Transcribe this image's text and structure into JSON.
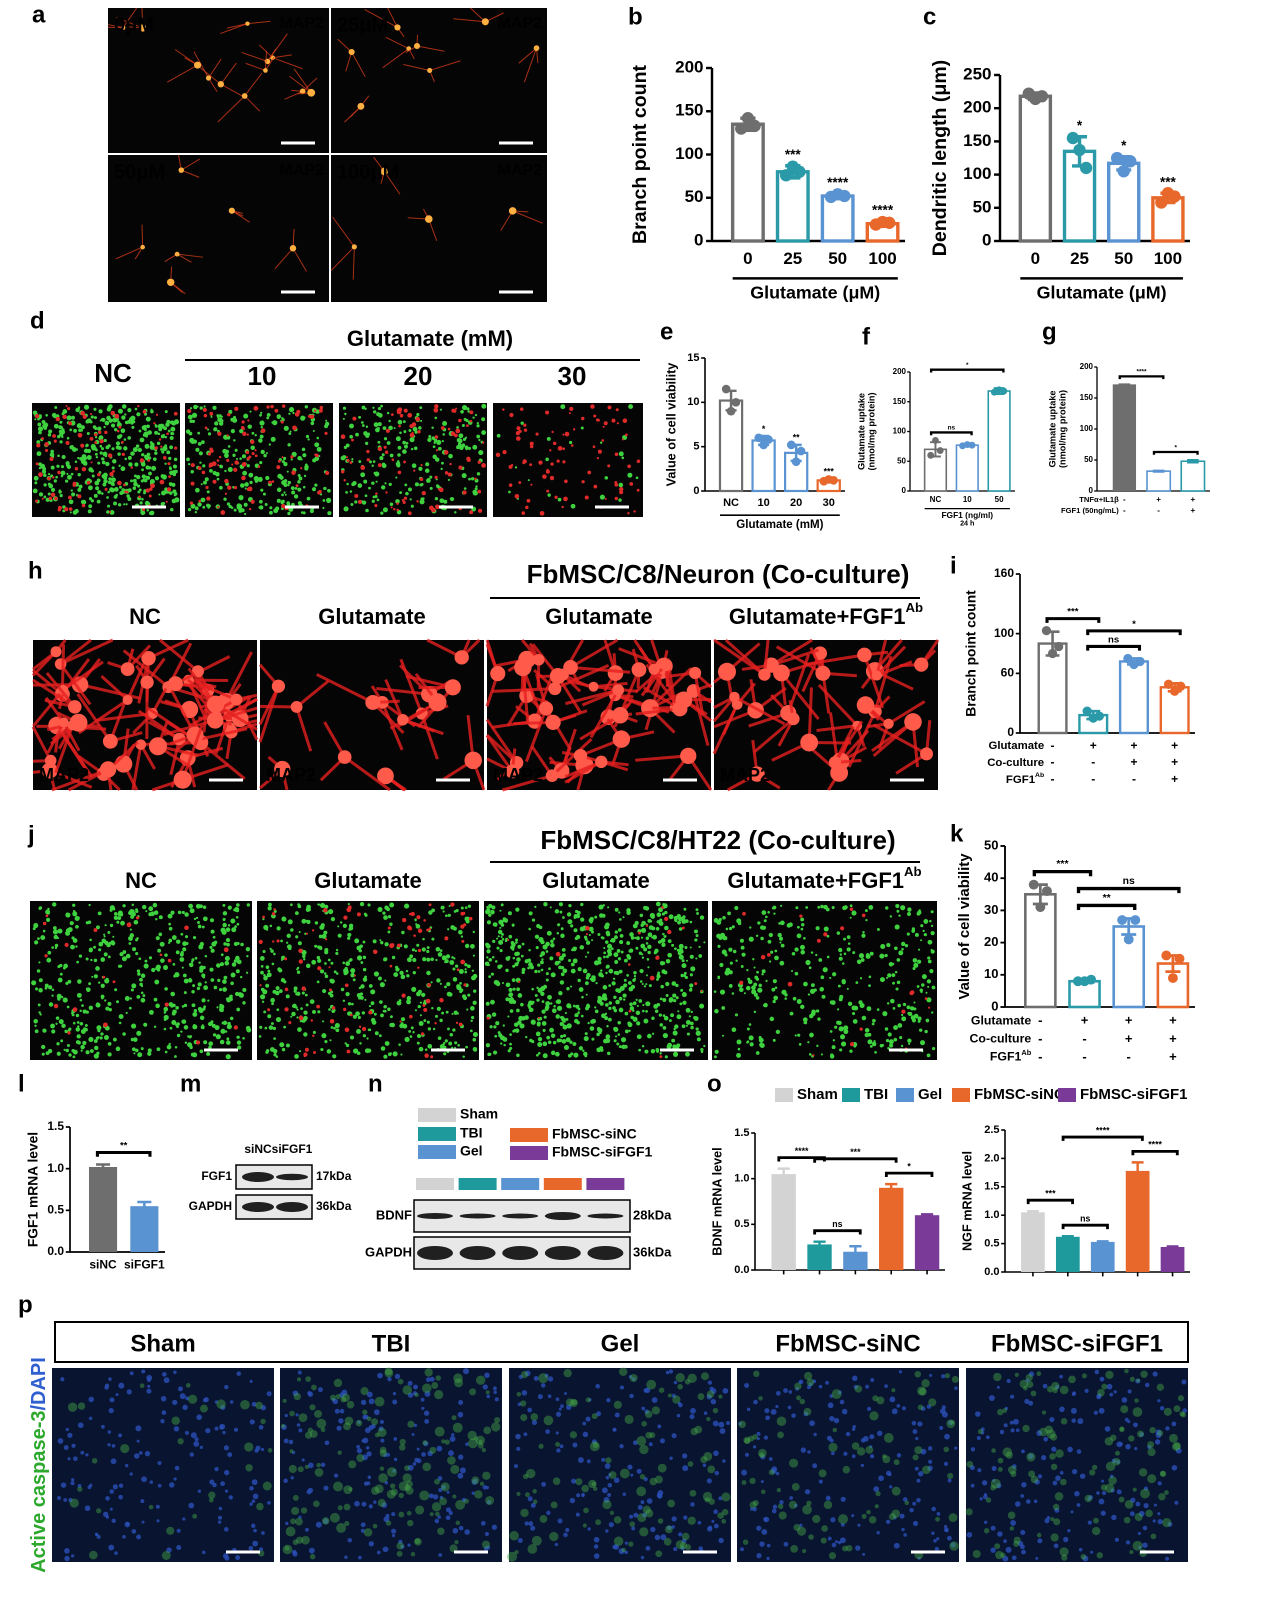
{
  "panels": {
    "a": {
      "letter": "a",
      "images": [
        {
          "label": "0μM",
          "marker": "MAP2"
        },
        {
          "label": "25μM",
          "marker": "MAP2"
        },
        {
          "label": "50μM",
          "marker": "MAP2"
        },
        {
          "label": "100μM",
          "marker": "MAP2"
        }
      ]
    },
    "d": {
      "letter": "d",
      "header": "Glutamate (mM)",
      "images": [
        {
          "label": "NC"
        },
        {
          "label": "10"
        },
        {
          "label": "20"
        },
        {
          "label": "30"
        }
      ]
    },
    "h": {
      "letter": "h",
      "header": "FbMSC/C8/Neuron (Co-culture)",
      "images": [
        {
          "label": "NC",
          "marker": "MAP2"
        },
        {
          "label": "Glutamate",
          "marker": "MAP2"
        },
        {
          "label": "Glutamate",
          "marker": "MAP2"
        },
        {
          "label": "Glutamate+FGF1",
          "sup": "Ab",
          "marker": "MAP2"
        }
      ]
    },
    "j": {
      "letter": "j",
      "header": "FbMSC/C8/HT22 (Co-culture)",
      "images": [
        {
          "label": "NC"
        },
        {
          "label": "Glutamate"
        },
        {
          "label": "Glutamate"
        },
        {
          "label": "Glutamate+FGF1",
          "sup": "Ab"
        }
      ]
    },
    "m": {
      "letter": "m",
      "lanes": [
        "siNC",
        "siFGF1"
      ],
      "rows": [
        {
          "name": "FGF1",
          "size": "17kDa"
        },
        {
          "name": "GAPDH",
          "size": "36kDa"
        }
      ]
    },
    "n": {
      "letter": "n",
      "legend": [
        {
          "name": "Sham",
          "color": "#d3d3d3"
        },
        {
          "name": "TBI",
          "color": "#1f9a9c"
        },
        {
          "name": "Gel",
          "color": "#5a93d2"
        },
        {
          "name": "FbMSC-siNC",
          "color": "#e8682c"
        },
        {
          "name": "FbMSC-siFGF1",
          "color": "#7a3a98"
        }
      ],
      "rows": [
        {
          "name": "BDNF",
          "size": "28kDa"
        },
        {
          "name": "GAPDH",
          "size": "36kDa"
        }
      ]
    },
    "o": {
      "letter": "o",
      "legend": [
        {
          "name": "Sham",
          "color": "#d3d3d3"
        },
        {
          "name": "TBI",
          "color": "#1f9a9c"
        },
        {
          "name": "Gel",
          "color": "#5a93d2"
        },
        {
          "name": "FbMSC-siNC",
          "color": "#e8682c"
        },
        {
          "name": "FbMSC-siFGF1",
          "color": "#7a3a98"
        }
      ]
    },
    "p": {
      "letter": "p",
      "groups": [
        "Sham",
        "TBI",
        "Gel",
        "FbMSC-siNC",
        "FbMSC-siFGF1"
      ],
      "stain": "Active caspase-3",
      "counterstain": "/DAPI"
    }
  },
  "chart_data": [
    {
      "type": "bar",
      "letter": "b",
      "ylabel": [
        "Branch point count"
      ],
      "xlabel": [
        "Glutamate (μM)"
      ],
      "categories": [
        "0",
        "25",
        "50",
        "100"
      ],
      "values": [
        135,
        80,
        52,
        20
      ],
      "errors": [
        7,
        7,
        3,
        3
      ],
      "points": [
        [
          130,
          142,
          133
        ],
        [
          76,
          86,
          80
        ],
        [
          51,
          54,
          52
        ],
        [
          19,
          22,
          21
        ]
      ],
      "colors": [
        "#6e6e6e",
        "#2a9aa8",
        "#5a93d2",
        "#e8682c"
      ],
      "filled": false,
      "labels": [
        null,
        "***",
        "****",
        "****"
      ],
      "ylim": [
        0,
        200
      ],
      "yticks": [
        0,
        50,
        100,
        150,
        200
      ]
    },
    {
      "type": "bar",
      "letter": "c",
      "ylabel": [
        "Dendritic length (μm)"
      ],
      "xlabel": [
        "Glutamate (μM)"
      ],
      "categories": [
        "0",
        "25",
        "50",
        "100"
      ],
      "values": [
        218,
        135,
        117,
        65
      ],
      "errors": [
        5,
        22,
        10,
        7
      ],
      "points": [
        [
          222,
          214,
          218
        ],
        [
          155,
          137,
          110
        ],
        [
          125,
          105,
          120
        ],
        [
          58,
          72,
          67
        ]
      ],
      "colors": [
        "#6e6e6e",
        "#2a9aa8",
        "#5a93d2",
        "#e8682c"
      ],
      "filled": false,
      "labels": [
        null,
        "*",
        "*",
        "***"
      ],
      "ylim": [
        0,
        250
      ],
      "yticks": [
        0,
        50,
        100,
        150,
        200,
        250
      ]
    },
    {
      "type": "bar",
      "letter": "e",
      "ylabel": [
        "Value of cell viability"
      ],
      "xlabel": [
        "Glutamate (mM)"
      ],
      "categories": [
        "NC",
        "10",
        "20",
        "30"
      ],
      "values": [
        10.2,
        5.7,
        4.3,
        1.2
      ],
      "errors": [
        1.1,
        0.5,
        0.9,
        0.2
      ],
      "points": [
        [
          11.5,
          9,
          10
        ],
        [
          6,
          5.2,
          5.8
        ],
        [
          5.2,
          3.3,
          4.5
        ],
        [
          1.1,
          1.3,
          1.2
        ]
      ],
      "colors": [
        "#6e6e6e",
        "#5a93d2",
        "#5a93d2",
        "#e8682c"
      ],
      "filled": false,
      "labels": [
        null,
        "*",
        "**",
        "***"
      ],
      "ylim": [
        0,
        15
      ],
      "yticks": [
        0,
        5,
        10,
        15
      ]
    },
    {
      "type": "bar",
      "letter": "f",
      "ylabel": [
        "Glutamate uptake",
        "(nmol/mg protein)"
      ],
      "xlabel": [
        "FGF1 (ng/ml)",
        "24 h"
      ],
      "categories": [
        "NC",
        "10",
        "50"
      ],
      "values": [
        70,
        77,
        168
      ],
      "errors": [
        12,
        2,
        5
      ],
      "points": [
        [
          60,
          85,
          68
        ],
        [
          76,
          78,
          77
        ],
        [
          166,
          170,
          168
        ]
      ],
      "colors": [
        "#6e6e6e",
        "#5a93d2",
        "#2a9aa8"
      ],
      "filled": false,
      "brackets": [
        {
          "text": "ns",
          "from": 0,
          "to": 1
        },
        {
          "text": "*",
          "from": 0,
          "to": 2
        }
      ],
      "ylim": [
        0,
        200
      ],
      "yticks": [
        0,
        50,
        100,
        150,
        200
      ]
    },
    {
      "type": "bar",
      "letter": "g",
      "ylabel": [
        "Glutamate uptake",
        "(nmol/mg protein)"
      ],
      "rows": [
        {
          "name": "TNFα+IL1β",
          "marks": [
            "-",
            "+",
            "+"
          ]
        },
        {
          "name": "FGF1 (50ng/mL)",
          "marks": [
            "-",
            "-",
            "+"
          ]
        }
      ],
      "values": [
        172,
        32,
        48
      ],
      "errors": [
        0,
        1,
        2
      ],
      "colors": [
        "#6e6e6e",
        "#5a93d2",
        "#2a9aa8"
      ],
      "filled": [
        true,
        false,
        false
      ],
      "brackets": [
        {
          "text": "****",
          "from": 0,
          "to": 1
        },
        {
          "text": "*",
          "from": 1,
          "to": 2
        }
      ],
      "ylim": [
        0,
        200
      ],
      "yticks": [
        0,
        50,
        100,
        150,
        200
      ]
    },
    {
      "type": "bar",
      "letter": "i",
      "ylabel": [
        "Branch point count"
      ],
      "rows": [
        {
          "name": "Glutamate",
          "marks": [
            "-",
            "+",
            "+",
            "+"
          ]
        },
        {
          "name": "Co-culture",
          "marks": [
            "-",
            "-",
            "+",
            "+"
          ]
        },
        {
          "name": "FGF1",
          "sup": "Ab",
          "marks": [
            "-",
            "-",
            "-",
            "+"
          ]
        }
      ],
      "values": [
        90,
        18,
        72,
        46
      ],
      "errors": [
        12,
        4,
        3,
        4
      ],
      "points": [
        [
          103,
          80,
          87
        ],
        [
          22,
          15,
          17
        ],
        [
          75,
          69,
          72
        ],
        [
          49,
          42,
          47
        ]
      ],
      "colors": [
        "#6e6e6e",
        "#2a9aa8",
        "#5a93d2",
        "#e8682c"
      ],
      "filled": false,
      "brackets": [
        {
          "text": "***",
          "from": 0,
          "to": 1
        },
        {
          "text": "ns",
          "from": 1,
          "to": 2
        },
        {
          "text": "*",
          "from": 1,
          "to": 3
        }
      ],
      "ylim": [
        0,
        160
      ],
      "yticks": [
        0,
        60,
        100,
        160
      ]
    },
    {
      "type": "bar",
      "letter": "k",
      "ylabel": [
        "Value of cell viability"
      ],
      "rows": [
        {
          "name": "Glutamate",
          "marks": [
            "-",
            "+",
            "+",
            "+"
          ]
        },
        {
          "name": "Co-culture",
          "marks": [
            "-",
            "-",
            "+",
            "+"
          ]
        },
        {
          "name": "FGF1",
          "sup": "Ab",
          "marks": [
            "-",
            "-",
            "-",
            "+"
          ]
        }
      ],
      "values": [
        35,
        8,
        25,
        13.5
      ],
      "errors": [
        3,
        0.5,
        2.5,
        2.5
      ],
      "points": [
        [
          38,
          31,
          36
        ],
        [
          8,
          8,
          8.5
        ],
        [
          27,
          21,
          27
        ],
        [
          16,
          9,
          15
        ]
      ],
      "colors": [
        "#6e6e6e",
        "#2a9aa8",
        "#5a93d2",
        "#e8682c"
      ],
      "filled": false,
      "brackets": [
        {
          "text": "***",
          "from": 0,
          "to": 1
        },
        {
          "text": "**",
          "from": 1,
          "to": 2
        },
        {
          "text": "ns",
          "from": 1,
          "to": 3
        }
      ],
      "ylim": [
        0,
        50
      ],
      "yticks": [
        0,
        10,
        20,
        30,
        40,
        50
      ]
    },
    {
      "type": "bar",
      "letter": "l",
      "ylabel": [
        "FGF1 mRNA level"
      ],
      "categories": [
        "siNC",
        "siFGF1"
      ],
      "values": [
        1.02,
        0.55
      ],
      "errors": [
        0.03,
        0.05
      ],
      "colors": [
        "#6e6e6e",
        "#5a93d2"
      ],
      "filled": true,
      "brackets": [
        {
          "text": "**",
          "from": 0,
          "to": 1
        }
      ],
      "ylim": [
        0,
        1.5
      ],
      "yticks": [
        {
          "value": 0,
          "label": "0.0"
        },
        0.5,
        {
          "value": 1,
          "label": "1.0"
        },
        1.5
      ]
    },
    {
      "type": "bar",
      "ylabel": [
        "BDNF mRNA level"
      ],
      "values": [
        1.05,
        0.28,
        0.2,
        0.9,
        0.6
      ],
      "errors": [
        0.06,
        0.03,
        0.06,
        0.04,
        0.01
      ],
      "colors": [
        "#d3d3d3",
        "#1f9a9c",
        "#5a93d2",
        "#e8682c",
        "#7a3a98"
      ],
      "filled": true,
      "brackets": [
        {
          "text": "****",
          "from": 0,
          "to": 1
        },
        {
          "text": "ns",
          "from": 1,
          "to": 2
        },
        {
          "text": "***",
          "from": 1,
          "to": 3
        },
        {
          "text": "*",
          "from": 3,
          "to": 4
        }
      ],
      "ylim": [
        0,
        1.5
      ],
      "yticks": [
        {
          "value": 0,
          "label": "0.0"
        },
        0.5,
        {
          "value": 1,
          "label": "1.0"
        },
        1.5
      ]
    },
    {
      "type": "bar",
      "ylabel": [
        "NGF mRNA level"
      ],
      "values": [
        1.05,
        0.62,
        0.53,
        1.78,
        0.44
      ],
      "errors": [
        0.02,
        0.01,
        0.01,
        0.15,
        0.01
      ],
      "colors": [
        "#d3d3d3",
        "#1f9a9c",
        "#5a93d2",
        "#e8682c",
        "#7a3a98"
      ],
      "filled": true,
      "brackets": [
        {
          "text": "***",
          "from": 0,
          "to": 1
        },
        {
          "text": "ns",
          "from": 1,
          "to": 2
        },
        {
          "text": "****",
          "from": 1,
          "to": 3
        },
        {
          "text": "****",
          "from": 3,
          "to": 4
        }
      ],
      "ylim": [
        0,
        2.5
      ],
      "yticks": [
        {
          "value": 0,
          "label": "0.0"
        },
        0.5,
        {
          "value": 1,
          "label": "1.0"
        },
        1.5,
        {
          "value": 2,
          "label": "2.0"
        },
        2.5
      ]
    }
  ]
}
